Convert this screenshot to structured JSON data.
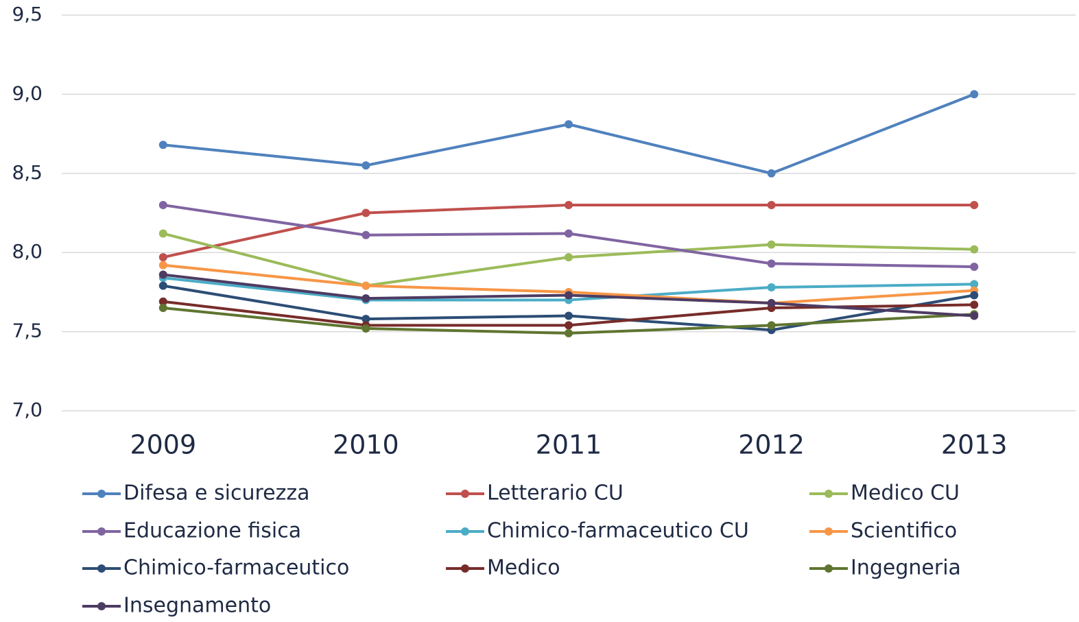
{
  "chart_data": {
    "type": "line",
    "categories": [
      "2009",
      "2010",
      "2011",
      "2012",
      "2013"
    ],
    "ylim": [
      7.0,
      9.5
    ],
    "yticks": [
      {
        "value": 7.0,
        "label": "7,0"
      },
      {
        "value": 7.5,
        "label": "7,5"
      },
      {
        "value": 8.0,
        "label": "8,0"
      },
      {
        "value": 8.5,
        "label": "8,5"
      },
      {
        "value": 9.0,
        "label": "9,0"
      },
      {
        "value": 9.5,
        "label": "9,5"
      }
    ],
    "grid": true,
    "legend": "bottom",
    "series": [
      {
        "name": "Difesa e sicurezza",
        "color": "#4f81bd",
        "values": [
          8.68,
          8.55,
          8.81,
          8.5,
          9.0
        ]
      },
      {
        "name": "Letterario CU",
        "color": "#c0504d",
        "values": [
          7.97,
          8.25,
          8.3,
          8.3,
          8.3
        ]
      },
      {
        "name": "Medico CU",
        "color": "#9bbb59",
        "values": [
          8.12,
          7.79,
          7.97,
          8.05,
          8.02
        ]
      },
      {
        "name": "Educazione fisica",
        "color": "#8064a2",
        "values": [
          8.3,
          8.11,
          8.12,
          7.93,
          7.91
        ]
      },
      {
        "name": "Chimico-farmaceutico CU",
        "color": "#4bacc6",
        "values": [
          7.84,
          7.7,
          7.7,
          7.78,
          7.8
        ]
      },
      {
        "name": "Scientifico",
        "color": "#f79646",
        "values": [
          7.92,
          7.79,
          7.75,
          7.68,
          7.76
        ]
      },
      {
        "name": "Chimico-farmaceutico",
        "color": "#2c4d75",
        "values": [
          7.79,
          7.58,
          7.6,
          7.51,
          7.73
        ]
      },
      {
        "name": "Medico",
        "color": "#772c2a",
        "values": [
          7.69,
          7.54,
          7.54,
          7.65,
          7.67
        ]
      },
      {
        "name": "Ingegneria",
        "color": "#5f7530",
        "values": [
          7.65,
          7.52,
          7.49,
          7.54,
          7.61
        ]
      },
      {
        "name": "Insegnamento",
        "color": "#4d3b62",
        "values": [
          7.86,
          7.71,
          7.73,
          7.68,
          7.6
        ]
      }
    ]
  }
}
